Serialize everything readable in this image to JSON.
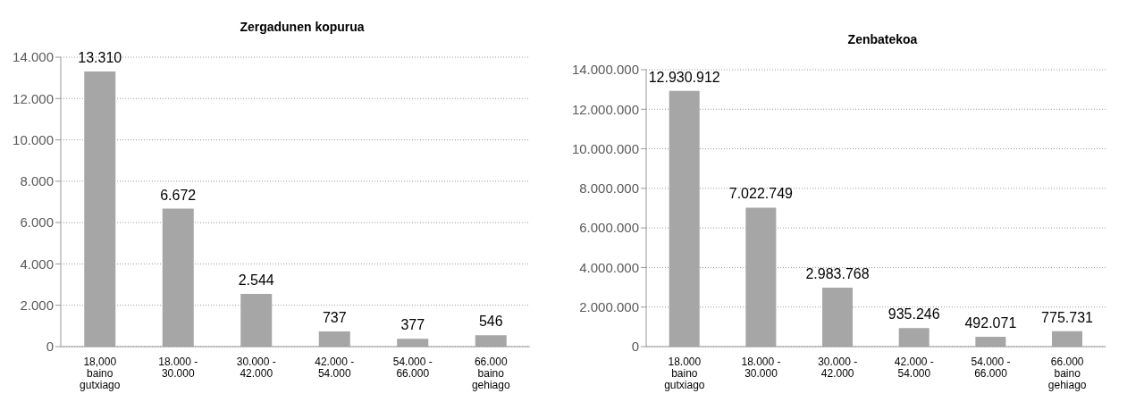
{
  "chart_data": [
    {
      "type": "bar",
      "title": "Zergadunen kopurua",
      "categories": [
        "18,000\nbaino\ngutxiago",
        "18.000 -\n30.000",
        "30.000 -\n42.000",
        "42.000 -\n54.000",
        "54.000 -\n66.000",
        "66.000\nbaino\ngehiago"
      ],
      "values": [
        13310,
        6672,
        2544,
        737,
        377,
        546
      ],
      "color": "#a6a6a6",
      "value_labels": [
        "13.310",
        "6.672",
        "2.544",
        "737",
        "377",
        "546"
      ],
      "ylim": [
        0,
        14000
      ],
      "yticks": [
        {
          "value": 0,
          "label": "0"
        },
        {
          "value": 2000,
          "label": "2.000"
        },
        {
          "value": 4000,
          "label": "4.000"
        },
        {
          "value": 6000,
          "label": "6.000"
        },
        {
          "value": 8000,
          "label": "8.000"
        },
        {
          "value": 10000,
          "label": "10.000"
        },
        {
          "value": 12000,
          "label": "12.000"
        },
        {
          "value": 14000,
          "label": "14.000"
        }
      ],
      "grid": "y",
      "legend": false
    },
    {
      "type": "bar",
      "title": "Zenbatekoa",
      "categories": [
        "18.000\nbaino\ngutxiago",
        "18.000 -\n30.000",
        "30.000 -\n42.000",
        "42.000 -\n54.000",
        "54.000 -\n66.000",
        "66.000\nbaino\ngehiago"
      ],
      "values": [
        12930912,
        7022749,
        2983768,
        935246,
        492071,
        775731
      ],
      "color": "#a6a6a6",
      "value_labels": [
        "12.930.912",
        "7.022.749",
        "2.983.768",
        "935.246",
        "492.071",
        "775.731"
      ],
      "ylim": [
        0,
        14000000
      ],
      "yticks": [
        {
          "value": 0,
          "label": "0"
        },
        {
          "value": 2000000,
          "label": "2.000.000"
        },
        {
          "value": 4000000,
          "label": "4.000.000"
        },
        {
          "value": 6000000,
          "label": "6.000.000"
        },
        {
          "value": 8000000,
          "label": "8.000.000"
        },
        {
          "value": 10000000,
          "label": "10.000.000"
        },
        {
          "value": 12000000,
          "label": "12.000.000"
        },
        {
          "value": 14000000,
          "label": "14.000.000"
        }
      ],
      "grid": "y",
      "legend": false
    }
  ]
}
